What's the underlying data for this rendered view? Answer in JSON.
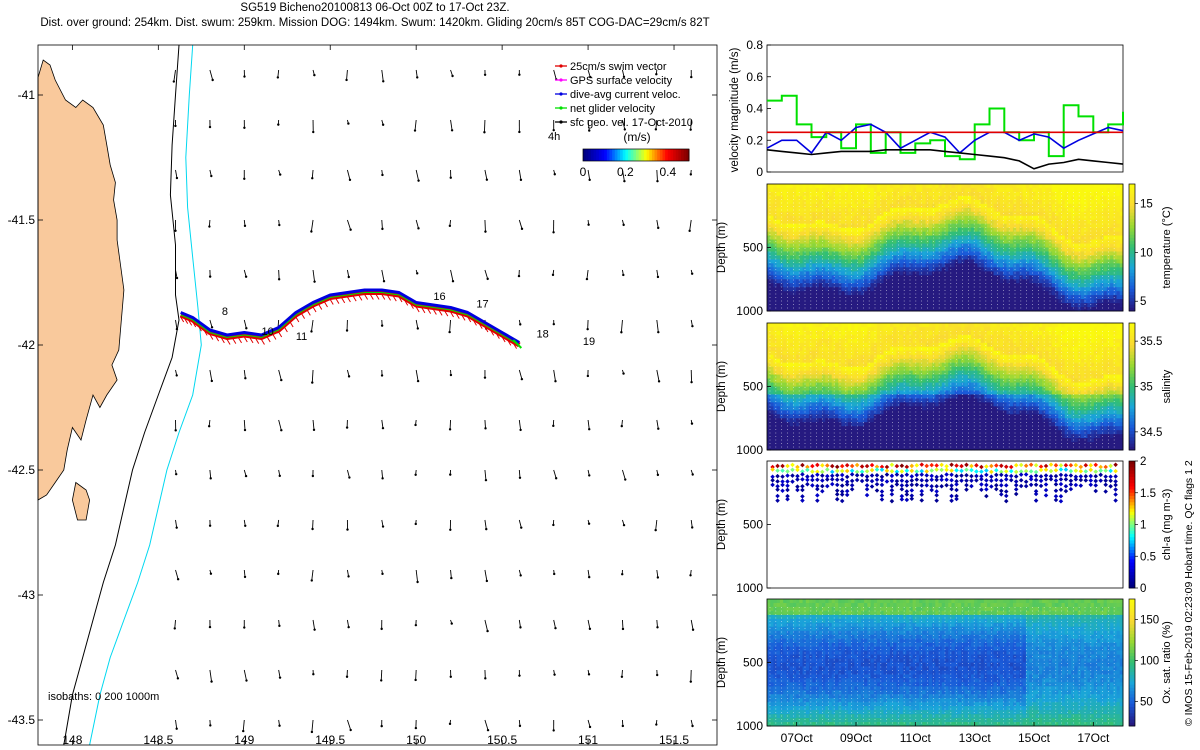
{
  "header": {
    "title": "SG519 Bicheno20100813 06-Oct 00Z to 17-Oct 23Z.",
    "subtitle": "Dist. over ground: 254km. Dist. swum: 259km. Mission DOG: 1494km. Swum: 1420km. Gliding 20cm/s 85T COG-DAC=29cm/s 82T"
  },
  "colors": {
    "land": "#f9c99c",
    "isobath_200": "#000000",
    "isobath_1000": "#00d8f0",
    "swim_vector": "#e00000",
    "gps_velocity": "#ff00ff",
    "dive_avg": "#0000e0",
    "net_velocity": "#00e000",
    "sfc_geo": "#000000"
  },
  "chart_data": [
    {
      "type": "scatter",
      "name": "map",
      "xlim": [
        147.8,
        151.75
      ],
      "ylim": [
        -43.6,
        -40.8
      ],
      "xticks": [
        "148",
        "148.5",
        "149",
        "149.5",
        "150",
        "150.5",
        "151",
        "151.5"
      ],
      "yticks": [
        "-41",
        "-41.5",
        "-42",
        "-42.5",
        "-43",
        "-43.5"
      ],
      "legend": {
        "placement": "top-right",
        "entries": [
          {
            "label": "25cm/s swim vector",
            "color": "#e00000"
          },
          {
            "label": "GPS surface velocity",
            "color": "#ff00ff"
          },
          {
            "label": "dive-avg current veloc.",
            "color": "#0000e0"
          },
          {
            "label": "net glider velocity",
            "color": "#00e000"
          },
          {
            "label": "sfc geo. vel. 17-Oct-2010",
            "color": "#000000"
          }
        ]
      },
      "speed_colorbar": {
        "label": "(m/s)",
        "ticks": [
          "0",
          "0.2",
          "0.4"
        ],
        "range": [
          0,
          0.5
        ]
      },
      "vector_note": "4h",
      "day_labels": [
        {
          "text": "8",
          "lon": 148.87,
          "lat": -41.88
        },
        {
          "text": "10",
          "lon": 149.1,
          "lat": -41.96
        },
        {
          "text": "11",
          "lon": 149.3,
          "lat": -41.98
        },
        {
          "text": "16",
          "lon": 150.1,
          "lat": -41.82
        },
        {
          "text": "17",
          "lon": 150.35,
          "lat": -41.85
        },
        {
          "text": "18",
          "lon": 150.7,
          "lat": -41.97
        },
        {
          "text": "19",
          "lon": 150.97,
          "lat": -42.0
        }
      ],
      "isobath_label": "isobaths: 0   200  1000m",
      "track": {
        "lon": [
          148.63,
          148.7,
          148.8,
          148.9,
          149.0,
          149.1,
          149.2,
          149.3,
          149.4,
          149.5,
          149.6,
          149.7,
          149.8,
          149.9,
          150.0,
          150.1,
          150.2,
          150.3,
          150.4,
          150.5,
          150.6
        ],
        "lat": [
          -41.88,
          -41.9,
          -41.95,
          -41.97,
          -41.96,
          -41.97,
          -41.94,
          -41.88,
          -41.84,
          -41.81,
          -41.8,
          -41.79,
          -41.79,
          -41.8,
          -41.84,
          -41.85,
          -41.86,
          -41.88,
          -41.92,
          -41.96,
          -42.0
        ]
      }
    },
    {
      "type": "line",
      "name": "velocity",
      "ylabel": "velocity magnitude (m/s)",
      "ylim": [
        0,
        0.8
      ],
      "yticks": [
        "0",
        "0.2",
        "0.4",
        "0.6",
        "0.8"
      ],
      "x": [
        0,
        0.5,
        1,
        1.5,
        2,
        2.5,
        3,
        3.5,
        4,
        4.5,
        5,
        5.5,
        6,
        6.5,
        7,
        7.5,
        8,
        8.5,
        9,
        9.5,
        10,
        10.5,
        11,
        11.5,
        12
      ],
      "series": [
        {
          "color": "#00e000",
          "values": [
            0.45,
            0.48,
            0.3,
            0.22,
            0.25,
            0.15,
            0.3,
            0.12,
            0.25,
            0.12,
            0.18,
            0.2,
            0.1,
            0.08,
            0.3,
            0.4,
            0.25,
            0.2,
            0.25,
            0.1,
            0.42,
            0.35,
            0.25,
            0.3,
            0.38
          ]
        },
        {
          "color": "#0000e0",
          "values": [
            0.15,
            0.2,
            0.2,
            0.12,
            0.25,
            0.2,
            0.28,
            0.3,
            0.25,
            0.15,
            0.2,
            0.25,
            0.22,
            0.12,
            0.2,
            0.25,
            0.25,
            0.2,
            0.24,
            0.22,
            0.15,
            0.2,
            0.24,
            0.28,
            0.26
          ]
        },
        {
          "color": "#000000",
          "values": [
            0.14,
            0.13,
            0.12,
            0.11,
            0.12,
            0.13,
            0.13,
            0.13,
            0.14,
            0.14,
            0.14,
            0.14,
            0.13,
            0.12,
            0.11,
            0.1,
            0.09,
            0.07,
            0.02,
            0.05,
            0.06,
            0.08,
            0.07,
            0.06,
            0.05
          ]
        },
        {
          "color": "#e00000",
          "values": [
            0.25,
            0.25,
            0.25,
            0.25,
            0.25,
            0.25,
            0.25,
            0.25,
            0.25,
            0.25,
            0.25,
            0.25,
            0.25,
            0.25,
            0.25,
            0.25,
            0.25,
            0.25,
            0.25,
            0.25,
            0.25,
            0.25,
            0.25,
            0.25,
            0.25
          ]
        }
      ]
    },
    {
      "type": "heatmap",
      "name": "temperature",
      "ylabel": "Depth (m)",
      "yticks": [
        "500",
        "1000"
      ],
      "cbar_label": "temperature (°C)",
      "cbar_ticks": [
        "5",
        "10",
        "15"
      ],
      "range": [
        4,
        17
      ]
    },
    {
      "type": "heatmap",
      "name": "salinity",
      "ylabel": "Depth (m)",
      "yticks": [
        "500",
        "1000"
      ],
      "cbar_label": "salinity",
      "cbar_ticks": [
        "34.5",
        "35",
        "35.5"
      ],
      "range": [
        34.3,
        35.7
      ]
    },
    {
      "type": "scatter",
      "name": "chl-a",
      "ylabel": "Depth (m)",
      "yticks": [
        "500",
        "1000"
      ],
      "cbar_label": "chl-a (mg m-3)",
      "cbar_ticks": [
        "0",
        "0.5",
        "1",
        "1.5",
        "2"
      ],
      "range": [
        0,
        2
      ]
    },
    {
      "type": "heatmap",
      "name": "oxygen",
      "ylabel": "Depth (m)",
      "yticks": [
        "500",
        "1000"
      ],
      "cbar_label": "Ox. sat. ratio (%)",
      "cbar_ticks": [
        "50",
        "100",
        "150"
      ],
      "range": [
        20,
        175
      ],
      "xticks": [
        "07Oct",
        "09Oct",
        "11Oct",
        "13Oct",
        "15Oct",
        "17Oct"
      ]
    }
  ],
  "footer": "© IMOS 15-Feb-2019 02:23:09 Hobart time. QC flags 1  2"
}
